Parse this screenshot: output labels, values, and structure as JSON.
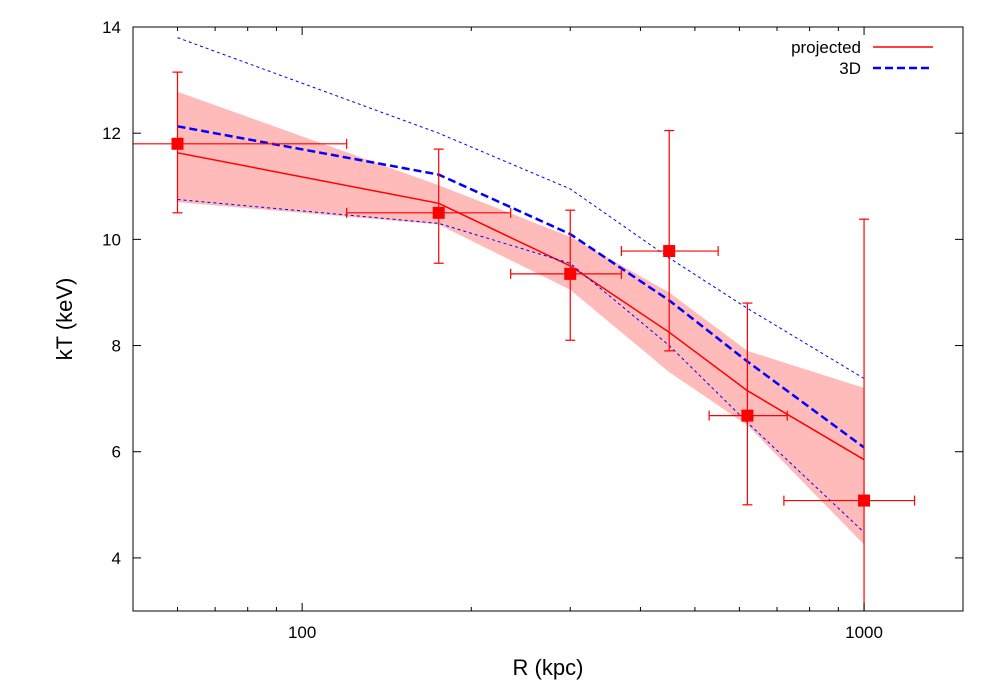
{
  "chart_data": {
    "type": "scatter",
    "xlabel": "R (kpc)",
    "ylabel": "kT (keV)",
    "xscale": "log",
    "xlim": [
      50,
      1500
    ],
    "ylim": [
      3,
      14
    ],
    "x_ticks": [
      100,
      1000
    ],
    "y_ticks": [
      4,
      6,
      8,
      10,
      12,
      14
    ],
    "grid": false,
    "legend_position": "top-right",
    "legend": [
      {
        "label": "projected",
        "color": "#ff0000",
        "style": "solid"
      },
      {
        "label": "3D",
        "color": "#0000ff",
        "style": "dashed"
      }
    ],
    "data_points": [
      {
        "x": 60,
        "y": 11.8,
        "xerr": [
          50,
          120
        ],
        "yerr": [
          10.5,
          13.15
        ]
      },
      {
        "x": 175,
        "y": 10.5,
        "xerr": [
          120,
          235
        ],
        "yerr": [
          9.55,
          11.7
        ]
      },
      {
        "x": 300,
        "y": 9.35,
        "xerr": [
          235,
          370
        ],
        "yerr": [
          8.1,
          10.55
        ]
      },
      {
        "x": 450,
        "y": 9.78,
        "xerr": [
          370,
          550
        ],
        "yerr": [
          7.9,
          12.05
        ]
      },
      {
        "x": 620,
        "y": 6.68,
        "xerr": [
          530,
          730
        ],
        "yerr": [
          5.0,
          8.8
        ]
      },
      {
        "x": 1000,
        "y": 5.08,
        "xerr": [
          720,
          1230
        ],
        "yerr": [
          3.0,
          10.38
        ]
      }
    ],
    "band": {
      "x": [
        60,
        175,
        300,
        450,
        620,
        1000
      ],
      "lower": [
        10.7,
        10.28,
        9.05,
        7.5,
        6.5,
        4.25
      ],
      "upper": [
        12.78,
        11.02,
        10.05,
        9.0,
        7.9,
        7.2
      ]
    },
    "series": [
      {
        "name": "projected",
        "x": [
          60,
          175,
          300,
          450,
          620,
          1000
        ],
        "y": [
          11.63,
          10.68,
          9.5,
          8.25,
          7.15,
          5.85
        ]
      },
      {
        "name": "3D",
        "x": [
          60,
          175,
          300,
          450,
          620,
          1000
        ],
        "y": [
          12.13,
          11.22,
          10.1,
          8.85,
          7.7,
          6.08
        ]
      },
      {
        "x": [
          60,
          175,
          300,
          450,
          620,
          1000
        ],
        "y": [
          13.8,
          12.0,
          10.95,
          9.65,
          8.7,
          7.38
        ]
      },
      {
        "x": [
          60,
          175,
          300,
          450,
          620,
          1000
        ],
        "y": [
          10.75,
          10.3,
          9.55,
          8.0,
          6.55,
          4.48
        ]
      }
    ]
  }
}
